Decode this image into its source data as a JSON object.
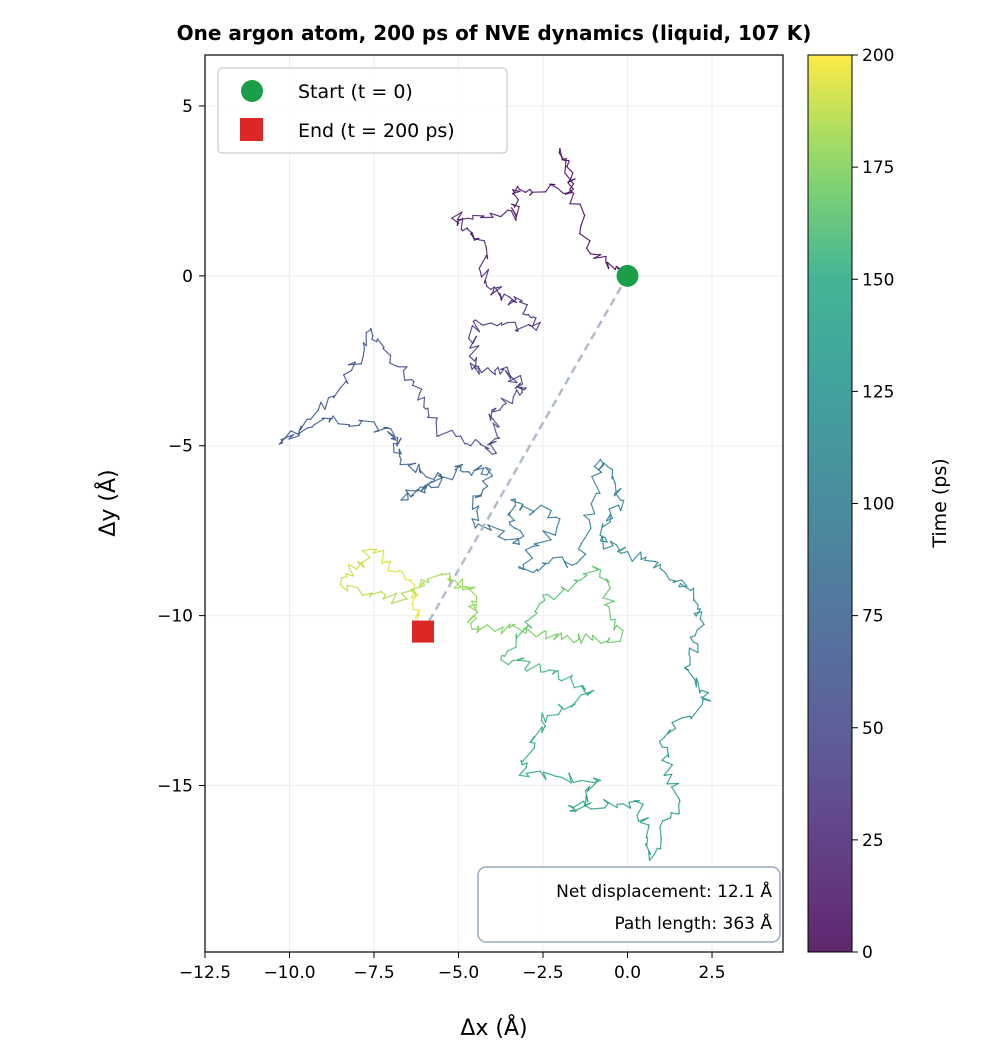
{
  "chart_data": {
    "type": "line",
    "title": "One argon atom, 200 ps of NVE dynamics (liquid, 107 K)",
    "xlabel": "Δx (Å)",
    "ylabel": "Δy (Å)",
    "xlim": [
      -12.5,
      4.6
    ],
    "ylim": [
      -19.9,
      6.5
    ],
    "xticks": [
      -12.5,
      -10.0,
      -7.5,
      -5.0,
      -2.5,
      0.0,
      2.5
    ],
    "xtick_labels": [
      "−12.5",
      "−10.0",
      "−7.5",
      "−5.0",
      "−2.5",
      "0.0",
      "2.5"
    ],
    "yticks": [
      5,
      0,
      -5,
      -10,
      -15
    ],
    "ytick_labels": [
      "5",
      "0",
      "−5",
      "−10",
      "−15"
    ],
    "grid": true,
    "colormap": "viridis",
    "colorbar": {
      "label": "Time (ps)",
      "range": [
        0,
        200
      ],
      "ticks": [
        0,
        25,
        50,
        75,
        100,
        125,
        150,
        175,
        200
      ],
      "tick_labels": [
        "0",
        "25",
        "50",
        "75",
        "100",
        "125",
        "150",
        "175",
        "200"
      ]
    },
    "trajectory_approx_waypoints": [
      [
        0,
        0
      ],
      [
        -1.1,
        0.65
      ],
      [
        -2.0,
        3.75
      ],
      [
        -1.6,
        2.55
      ],
      [
        -3.2,
        2.55
      ],
      [
        -3.3,
        1.8
      ],
      [
        -5.2,
        1.7
      ],
      [
        -4.4,
        1.1
      ],
      [
        -4.05,
        -0.4
      ],
      [
        -3.3,
        -0.7
      ],
      [
        -2.7,
        -1.6
      ],
      [
        -4.5,
        -1.3
      ],
      [
        -4.6,
        -2.75
      ],
      [
        -3.75,
        -2.75
      ],
      [
        -3.0,
        -3.3
      ],
      [
        -3.9,
        -3.9
      ],
      [
        -4.0,
        -5.25
      ],
      [
        -5.65,
        -4.5
      ],
      [
        -6.4,
        -3.05
      ],
      [
        -7.6,
        -1.55
      ],
      [
        -8.5,
        -3.3
      ],
      [
        -10.3,
        -4.95
      ],
      [
        -8.8,
        -4.2
      ],
      [
        -7.0,
        -4.5
      ],
      [
        -6.7,
        -5.4
      ],
      [
        -5.5,
        -6.0
      ],
      [
        -6.7,
        -6.6
      ],
      [
        -5.1,
        -5.7
      ],
      [
        -4.05,
        -5.7
      ],
      [
        -4.6,
        -7.15
      ],
      [
        -3.2,
        -7.9
      ],
      [
        -3.45,
        -6.6
      ],
      [
        -2.0,
        -7.15
      ],
      [
        -3.2,
        -8.6
      ],
      [
        -1.4,
        -8.35
      ],
      [
        -0.8,
        -5.4
      ],
      [
        -0.2,
        -6.6
      ],
      [
        -0.8,
        -7.8
      ],
      [
        0.4,
        -8.35
      ],
      [
        1.6,
        -8.95
      ],
      [
        2.15,
        -10.1
      ],
      [
        1.8,
        -11.6
      ],
      [
        2.4,
        -12.5
      ],
      [
        0.95,
        -13.7
      ],
      [
        1.55,
        -15.45
      ],
      [
        0.65,
        -17.2
      ],
      [
        0.35,
        -15.45
      ],
      [
        -1.7,
        -15.75
      ],
      [
        -0.8,
        -14.85
      ],
      [
        -3.2,
        -14.7
      ],
      [
        -2.55,
        -13.1
      ],
      [
        -1.0,
        -12.2
      ],
      [
        -2.3,
        -11.6
      ],
      [
        -3.75,
        -11.3
      ],
      [
        -2.45,
        -9.55
      ],
      [
        -0.8,
        -8.65
      ],
      [
        -0.2,
        -10.7
      ],
      [
        -1.95,
        -10.7
      ],
      [
        -3.2,
        -10.4
      ],
      [
        -4.6,
        -10.4
      ],
      [
        -4.6,
        -9.2
      ],
      [
        -5.5,
        -8.8
      ],
      [
        -6.7,
        -9.55
      ],
      [
        -8.5,
        -9.1
      ],
      [
        -7.6,
        -8.05
      ],
      [
        -6.4,
        -8.95
      ],
      [
        -6.2,
        -10.7
      ],
      [
        -6.05,
        -10.47
      ]
    ],
    "start": {
      "x": 0,
      "y": 0,
      "t": 0
    },
    "end": {
      "x": -6.05,
      "y": -10.47,
      "t": 200
    },
    "legend": {
      "placement": "top-left",
      "entries": [
        {
          "label": "Start (t = 0)",
          "marker": "circle",
          "color": "#1a9e4a"
        },
        {
          "label": "End (t = 200 ps)",
          "marker": "square",
          "color": "#dd2626"
        }
      ]
    },
    "annotation": {
      "line1": "Net displacement: 12.1 Å",
      "line2": "Path length: 363 Å",
      "placement": "bottom-right"
    },
    "displacement_line_color": "#b0bccb"
  }
}
